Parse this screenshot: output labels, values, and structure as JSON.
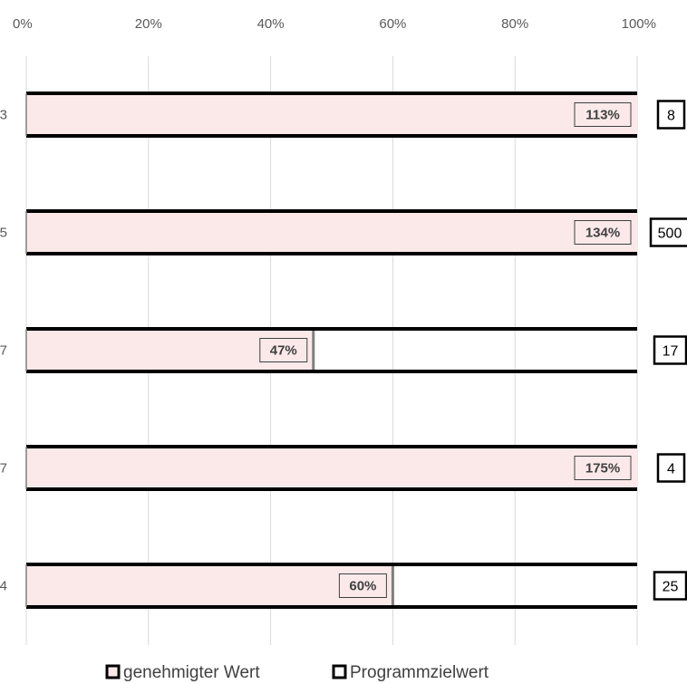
{
  "chart_data": {
    "type": "bar",
    "orientation": "horizontal",
    "x_ticks": [
      "0%",
      "20%",
      "40%",
      "60%",
      "80%",
      "100%"
    ],
    "xlim": [
      0,
      1
    ],
    "grid": true,
    "legend_position": "bottom",
    "categories": [
      "3",
      "5",
      "7",
      "7",
      "4"
    ],
    "series": [
      {
        "name": "genehmigter Wert",
        "color": "#fbe9e9",
        "values": [
          1.13,
          1.34,
          0.47,
          1.75,
          0.6
        ],
        "data_labels": [
          "113%",
          "134%",
          "47%",
          "175%",
          "60%"
        ]
      },
      {
        "name": "Programmzielwert",
        "color": "#ffffff",
        "values": [
          1,
          1,
          1,
          1,
          1
        ],
        "target_labels": [
          "8",
          "500",
          "17",
          "4",
          "25"
        ]
      }
    ]
  }
}
